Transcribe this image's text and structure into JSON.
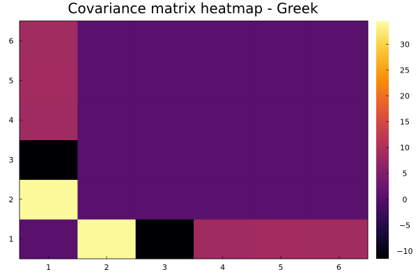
{
  "chart_data": {
    "type": "heatmap",
    "title": "Covariance matrix heatmap - Greek",
    "xlabel": "",
    "ylabel": "",
    "x_ticks": [
      "1",
      "2",
      "3",
      "4",
      "5",
      "6"
    ],
    "y_ticks": [
      "1",
      "2",
      "3",
      "4",
      "5",
      "6"
    ],
    "colormap": "inferno",
    "color_range": [
      -11.5,
      34.5
    ],
    "colorbar_ticks": [
      -10,
      -5,
      0,
      5,
      10,
      15,
      20,
      25,
      30
    ],
    "grid": false,
    "legend": "colorbar-right",
    "rows": [
      [
        0.5,
        34.0,
        -11.5,
        8.5,
        8.8,
        8.7
      ],
      [
        34.0,
        0.5,
        0.5,
        0.5,
        0.5,
        0.5
      ],
      [
        -11.5,
        0.5,
        0.5,
        0.5,
        0.5,
        0.5
      ],
      [
        8.5,
        0.5,
        0.5,
        0.5,
        0.5,
        0.5
      ],
      [
        8.8,
        0.5,
        0.5,
        0.5,
        0.5,
        0.5
      ],
      [
        8.7,
        0.5,
        0.5,
        0.5,
        0.5,
        0.5
      ]
    ]
  }
}
